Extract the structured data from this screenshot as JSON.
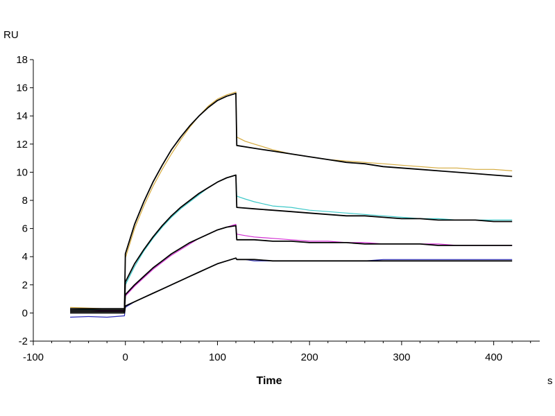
{
  "chart_data": {
    "type": "line",
    "title": "",
    "xlabel": "Time",
    "x_unit": "s",
    "ylabel": "",
    "y_unit": "RU",
    "xlim": [
      -100,
      450
    ],
    "ylim": [
      -2,
      18
    ],
    "x_ticks": [
      -100,
      0,
      100,
      200,
      300,
      400
    ],
    "y_ticks": [
      -2,
      0,
      2,
      4,
      6,
      8,
      10,
      12,
      14,
      16,
      18
    ],
    "grid": false,
    "legend": "none",
    "series": [
      {
        "color": "#d4a93c",
        "style": "measured",
        "points": [
          [
            -60,
            0.4
          ],
          [
            -40,
            0.35
          ],
          [
            -20,
            0.3
          ],
          [
            -1,
            0.3
          ],
          [
            0,
            3.9
          ],
          [
            10,
            6.0
          ],
          [
            20,
            7.6
          ],
          [
            30,
            9.0
          ],
          [
            40,
            10.2
          ],
          [
            50,
            11.3
          ],
          [
            60,
            12.3
          ],
          [
            70,
            13.2
          ],
          [
            80,
            14.0
          ],
          [
            90,
            14.7
          ],
          [
            100,
            15.2
          ],
          [
            110,
            15.5
          ],
          [
            120,
            15.7
          ],
          [
            121,
            12.5
          ],
          [
            130,
            12.2
          ],
          [
            140,
            12.0
          ],
          [
            160,
            11.6
          ],
          [
            180,
            11.3
          ],
          [
            200,
            11.1
          ],
          [
            220,
            10.9
          ],
          [
            240,
            10.8
          ],
          [
            260,
            10.7
          ],
          [
            280,
            10.6
          ],
          [
            300,
            10.5
          ],
          [
            320,
            10.4
          ],
          [
            340,
            10.3
          ],
          [
            360,
            10.3
          ],
          [
            380,
            10.2
          ],
          [
            400,
            10.2
          ],
          [
            420,
            10.1
          ]
        ]
      },
      {
        "color": "#3cc8c8",
        "style": "measured",
        "points": [
          [
            -60,
            0.3
          ],
          [
            -40,
            0.25
          ],
          [
            -20,
            0.2
          ],
          [
            -1,
            0.2
          ],
          [
            0,
            2.0
          ],
          [
            10,
            3.3
          ],
          [
            20,
            4.4
          ],
          [
            30,
            5.3
          ],
          [
            40,
            6.1
          ],
          [
            50,
            6.8
          ],
          [
            60,
            7.4
          ],
          [
            70,
            7.9
          ],
          [
            80,
            8.4
          ],
          [
            90,
            8.9
          ],
          [
            100,
            9.3
          ],
          [
            110,
            9.6
          ],
          [
            120,
            9.8
          ],
          [
            121,
            8.3
          ],
          [
            130,
            8.1
          ],
          [
            140,
            7.9
          ],
          [
            160,
            7.6
          ],
          [
            180,
            7.5
          ],
          [
            200,
            7.3
          ],
          [
            220,
            7.2
          ],
          [
            240,
            7.1
          ],
          [
            260,
            7.0
          ],
          [
            280,
            6.9
          ],
          [
            300,
            6.8
          ],
          [
            320,
            6.7
          ],
          [
            340,
            6.7
          ],
          [
            360,
            6.6
          ],
          [
            380,
            6.6
          ],
          [
            400,
            6.6
          ],
          [
            420,
            6.6
          ]
        ]
      },
      {
        "color": "#d02cd0",
        "style": "measured",
        "points": [
          [
            -60,
            0.2
          ],
          [
            -40,
            0.2
          ],
          [
            -20,
            0.15
          ],
          [
            -1,
            0.15
          ],
          [
            0,
            1.2
          ],
          [
            10,
            1.9
          ],
          [
            20,
            2.5
          ],
          [
            30,
            3.1
          ],
          [
            40,
            3.6
          ],
          [
            50,
            4.1
          ],
          [
            60,
            4.5
          ],
          [
            70,
            4.9
          ],
          [
            80,
            5.3
          ],
          [
            90,
            5.6
          ],
          [
            100,
            5.9
          ],
          [
            110,
            6.1
          ],
          [
            120,
            6.3
          ],
          [
            121,
            5.6
          ],
          [
            130,
            5.5
          ],
          [
            140,
            5.4
          ],
          [
            160,
            5.3
          ],
          [
            180,
            5.2
          ],
          [
            200,
            5.1
          ],
          [
            220,
            5.1
          ],
          [
            240,
            5.0
          ],
          [
            260,
            5.0
          ],
          [
            280,
            4.9
          ],
          [
            300,
            4.9
          ],
          [
            320,
            4.9
          ],
          [
            340,
            4.9
          ],
          [
            360,
            4.8
          ],
          [
            380,
            4.8
          ],
          [
            400,
            4.8
          ],
          [
            420,
            4.8
          ]
        ]
      },
      {
        "color": "#2a2ab8",
        "style": "measured",
        "points": [
          [
            -60,
            -0.3
          ],
          [
            -40,
            -0.25
          ],
          [
            -20,
            -0.3
          ],
          [
            -1,
            -0.2
          ],
          [
            0,
            0.4
          ],
          [
            10,
            0.8
          ],
          [
            20,
            1.1
          ],
          [
            30,
            1.4
          ],
          [
            40,
            1.7
          ],
          [
            50,
            2.0
          ],
          [
            60,
            2.3
          ],
          [
            70,
            2.6
          ],
          [
            80,
            2.9
          ],
          [
            90,
            3.2
          ],
          [
            100,
            3.5
          ],
          [
            110,
            3.7
          ],
          [
            120,
            3.9
          ],
          [
            121,
            3.8
          ],
          [
            130,
            3.8
          ],
          [
            140,
            3.7
          ],
          [
            160,
            3.7
          ],
          [
            180,
            3.7
          ],
          [
            200,
            3.7
          ],
          [
            220,
            3.7
          ],
          [
            240,
            3.7
          ],
          [
            260,
            3.7
          ],
          [
            280,
            3.8
          ],
          [
            300,
            3.8
          ],
          [
            320,
            3.8
          ],
          [
            340,
            3.8
          ],
          [
            360,
            3.8
          ],
          [
            380,
            3.8
          ],
          [
            400,
            3.8
          ],
          [
            420,
            3.8
          ]
        ]
      },
      {
        "color": "#000000",
        "style": "fit",
        "points": [
          [
            -60,
            0.3
          ],
          [
            -1,
            0.3
          ],
          [
            0,
            4.2
          ],
          [
            10,
            6.3
          ],
          [
            20,
            7.9
          ],
          [
            30,
            9.3
          ],
          [
            40,
            10.5
          ],
          [
            50,
            11.6
          ],
          [
            60,
            12.5
          ],
          [
            70,
            13.3
          ],
          [
            80,
            14.0
          ],
          [
            90,
            14.6
          ],
          [
            100,
            15.1
          ],
          [
            110,
            15.4
          ],
          [
            120,
            15.6
          ],
          [
            121,
            11.9
          ],
          [
            140,
            11.7
          ],
          [
            160,
            11.5
          ],
          [
            180,
            11.3
          ],
          [
            200,
            11.1
          ],
          [
            220,
            10.9
          ],
          [
            240,
            10.7
          ],
          [
            260,
            10.6
          ],
          [
            280,
            10.4
          ],
          [
            300,
            10.3
          ],
          [
            320,
            10.2
          ],
          [
            340,
            10.1
          ],
          [
            360,
            10.0
          ],
          [
            380,
            9.9
          ],
          [
            400,
            9.8
          ],
          [
            420,
            9.7
          ]
        ]
      },
      {
        "color": "#000000",
        "style": "fit",
        "points": [
          [
            -60,
            0.2
          ],
          [
            -1,
            0.2
          ],
          [
            0,
            2.2
          ],
          [
            10,
            3.5
          ],
          [
            20,
            4.5
          ],
          [
            30,
            5.4
          ],
          [
            40,
            6.2
          ],
          [
            50,
            6.9
          ],
          [
            60,
            7.5
          ],
          [
            70,
            8.0
          ],
          [
            80,
            8.5
          ],
          [
            90,
            8.9
          ],
          [
            100,
            9.3
          ],
          [
            110,
            9.6
          ],
          [
            120,
            9.8
          ],
          [
            121,
            7.5
          ],
          [
            140,
            7.4
          ],
          [
            160,
            7.3
          ],
          [
            180,
            7.2
          ],
          [
            200,
            7.1
          ],
          [
            220,
            7.0
          ],
          [
            240,
            6.9
          ],
          [
            260,
            6.9
          ],
          [
            280,
            6.8
          ],
          [
            300,
            6.7
          ],
          [
            320,
            6.7
          ],
          [
            340,
            6.6
          ],
          [
            360,
            6.6
          ],
          [
            380,
            6.6
          ],
          [
            400,
            6.5
          ],
          [
            420,
            6.5
          ]
        ]
      },
      {
        "color": "#000000",
        "style": "fit",
        "points": [
          [
            -60,
            0.1
          ],
          [
            -1,
            0.1
          ],
          [
            0,
            1.3
          ],
          [
            10,
            2.0
          ],
          [
            20,
            2.6
          ],
          [
            30,
            3.2
          ],
          [
            40,
            3.7
          ],
          [
            50,
            4.2
          ],
          [
            60,
            4.6
          ],
          [
            70,
            5.0
          ],
          [
            80,
            5.3
          ],
          [
            90,
            5.6
          ],
          [
            100,
            5.9
          ],
          [
            110,
            6.1
          ],
          [
            120,
            6.2
          ],
          [
            121,
            5.2
          ],
          [
            140,
            5.2
          ],
          [
            160,
            5.1
          ],
          [
            180,
            5.1
          ],
          [
            200,
            5.0
          ],
          [
            220,
            5.0
          ],
          [
            240,
            5.0
          ],
          [
            260,
            4.9
          ],
          [
            280,
            4.9
          ],
          [
            300,
            4.9
          ],
          [
            320,
            4.9
          ],
          [
            340,
            4.8
          ],
          [
            360,
            4.8
          ],
          [
            380,
            4.8
          ],
          [
            400,
            4.8
          ],
          [
            420,
            4.8
          ]
        ]
      },
      {
        "color": "#000000",
        "style": "fit",
        "points": [
          [
            -60,
            0.0
          ],
          [
            -1,
            0.0
          ],
          [
            0,
            0.5
          ],
          [
            10,
            0.8
          ],
          [
            20,
            1.1
          ],
          [
            30,
            1.4
          ],
          [
            40,
            1.7
          ],
          [
            50,
            2.0
          ],
          [
            60,
            2.3
          ],
          [
            70,
            2.6
          ],
          [
            80,
            2.9
          ],
          [
            90,
            3.2
          ],
          [
            100,
            3.5
          ],
          [
            110,
            3.7
          ],
          [
            120,
            3.9
          ],
          [
            121,
            3.8
          ],
          [
            140,
            3.8
          ],
          [
            160,
            3.7
          ],
          [
            180,
            3.7
          ],
          [
            200,
            3.7
          ],
          [
            220,
            3.7
          ],
          [
            240,
            3.7
          ],
          [
            260,
            3.7
          ],
          [
            280,
            3.7
          ],
          [
            300,
            3.7
          ],
          [
            320,
            3.7
          ],
          [
            340,
            3.7
          ],
          [
            360,
            3.7
          ],
          [
            380,
            3.7
          ],
          [
            400,
            3.7
          ],
          [
            420,
            3.7
          ]
        ]
      }
    ]
  }
}
